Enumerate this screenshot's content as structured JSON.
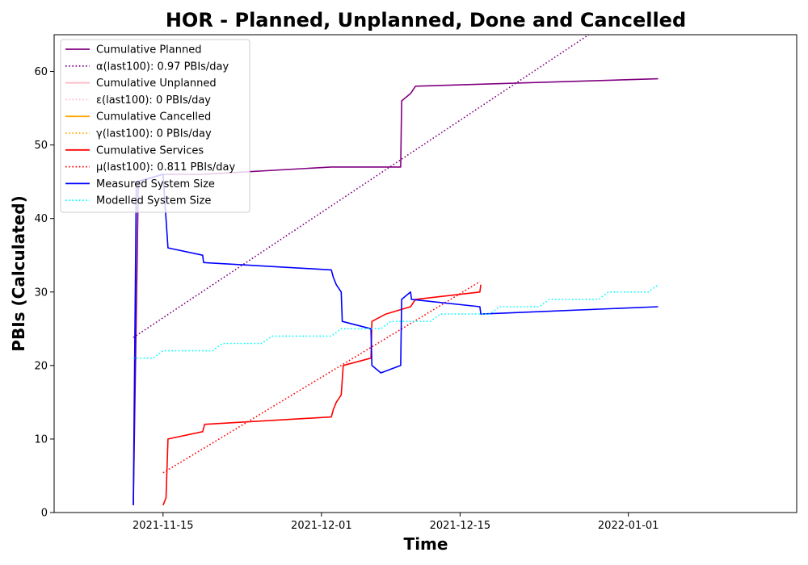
{
  "chart_data": {
    "type": "line",
    "title": "HOR - Planned, Unplanned, Done  and Cancelled",
    "xlabel": "Time",
    "ylabel": "PBIs (Calculated)",
    "xlim": [
      "2021-11-04",
      "2022-01-18"
    ],
    "ylim": [
      0,
      65
    ],
    "x_ticks": [
      "2021-11-15",
      "2021-12-01",
      "2021-12-15",
      "2022-01-01"
    ],
    "y_ticks": [
      0,
      10,
      20,
      30,
      40,
      50,
      60
    ],
    "grid": false,
    "legend_position": "upper-left",
    "series": [
      {
        "name": "Cumulative Planned",
        "color": "#800080",
        "style": "solid",
        "points": [
          [
            "2021-11-12",
            1
          ],
          [
            "2021-11-12.5",
            45
          ],
          [
            "2021-11-15",
            46
          ],
          [
            "2021-11-19",
            46
          ],
          [
            "2021-12-02",
            47
          ],
          [
            "2021-12-09",
            47
          ],
          [
            "2021-12-09.1",
            56
          ],
          [
            "2021-12-10",
            57
          ],
          [
            "2021-12-10.5",
            58
          ],
          [
            "2022-01-04",
            59
          ]
        ]
      },
      {
        "name": "α(last100): 0.97 PBIs/day",
        "color": "#800080",
        "style": "dotted",
        "points": [
          [
            "2021-11-12",
            23.8
          ],
          [
            "2021-12-28",
            65
          ]
        ]
      },
      {
        "name": "Cumulative Unplanned",
        "color": "#ffb6c1",
        "style": "solid",
        "points": []
      },
      {
        "name": "ε(last100): 0 PBIs/day",
        "color": "#ffb6c1",
        "style": "dotted",
        "points": []
      },
      {
        "name": "Cumulative Cancelled",
        "color": "#ffa500",
        "style": "solid",
        "points": []
      },
      {
        "name": "γ(last100): 0 PBIs/day",
        "color": "#ffa500",
        "style": "dotted",
        "points": []
      },
      {
        "name": "Cumulative Services",
        "color": "#ff0000",
        "style": "solid",
        "points": [
          [
            "2021-11-15",
            1
          ],
          [
            "2021-11-15.3",
            2
          ],
          [
            "2021-11-15.5",
            10
          ],
          [
            "2021-11-19",
            11
          ],
          [
            "2021-11-19.2",
            12
          ],
          [
            "2021-12-02",
            13
          ],
          [
            "2021-12-02.2",
            14
          ],
          [
            "2021-12-02.5",
            15
          ],
          [
            "2021-12-03",
            16
          ],
          [
            "2021-12-03.2",
            20
          ],
          [
            "2021-12-06",
            21
          ],
          [
            "2021-12-06.1",
            26
          ],
          [
            "2021-12-07.5",
            27
          ],
          [
            "2021-12-10",
            28
          ],
          [
            "2021-12-10.5",
            29
          ],
          [
            "2021-12-17",
            30
          ],
          [
            "2021-12-17.1",
            31
          ]
        ]
      },
      {
        "name": "μ(last100): 0.811 PBIs/day",
        "color": "#ff0000",
        "style": "dotted",
        "points": [
          [
            "2021-11-15",
            5.4
          ],
          [
            "2021-12-17",
            31.4
          ]
        ]
      },
      {
        "name": "Measured System Size",
        "color": "#0000ff",
        "style": "solid",
        "points": [
          [
            "2021-11-12",
            1
          ],
          [
            "2021-11-12.3",
            45
          ],
          [
            "2021-11-15",
            46
          ],
          [
            "2021-11-15.5",
            36
          ],
          [
            "2021-11-19",
            35
          ],
          [
            "2021-11-19.1",
            34
          ],
          [
            "2021-12-02",
            33
          ],
          [
            "2021-12-02.2",
            32
          ],
          [
            "2021-12-02.5",
            31
          ],
          [
            "2021-12-03",
            30
          ],
          [
            "2021-12-03.1",
            26
          ],
          [
            "2021-12-06",
            25
          ],
          [
            "2021-12-06.1",
            20
          ],
          [
            "2021-12-07",
            19
          ],
          [
            "2021-12-09",
            20
          ],
          [
            "2021-12-09.1",
            29
          ],
          [
            "2021-12-10",
            30
          ],
          [
            "2021-12-10.1",
            29
          ],
          [
            "2021-12-17",
            28
          ],
          [
            "2021-12-17.1",
            27
          ],
          [
            "2022-01-04",
            28
          ]
        ]
      },
      {
        "name": "Modelled System Size",
        "color": "#00ffff",
        "style": "dotted",
        "points": [
          [
            "2021-11-12",
            21
          ],
          [
            "2021-11-14",
            21
          ],
          [
            "2021-11-15",
            22
          ],
          [
            "2021-11-20",
            22
          ],
          [
            "2021-11-21",
            23
          ],
          [
            "2021-11-25",
            23
          ],
          [
            "2021-11-26",
            24
          ],
          [
            "2021-12-02",
            24
          ],
          [
            "2021-12-03",
            25
          ],
          [
            "2021-12-07",
            25
          ],
          [
            "2021-12-08",
            26
          ],
          [
            "2021-12-12",
            26
          ],
          [
            "2021-12-13",
            27
          ],
          [
            "2021-12-18",
            27
          ],
          [
            "2021-12-19",
            28
          ],
          [
            "2021-12-23",
            28
          ],
          [
            "2021-12-24",
            29
          ],
          [
            "2021-12-29",
            29
          ],
          [
            "2021-12-30",
            30
          ],
          [
            "2022-01-03",
            30
          ],
          [
            "2022-01-04",
            31
          ]
        ]
      }
    ]
  }
}
